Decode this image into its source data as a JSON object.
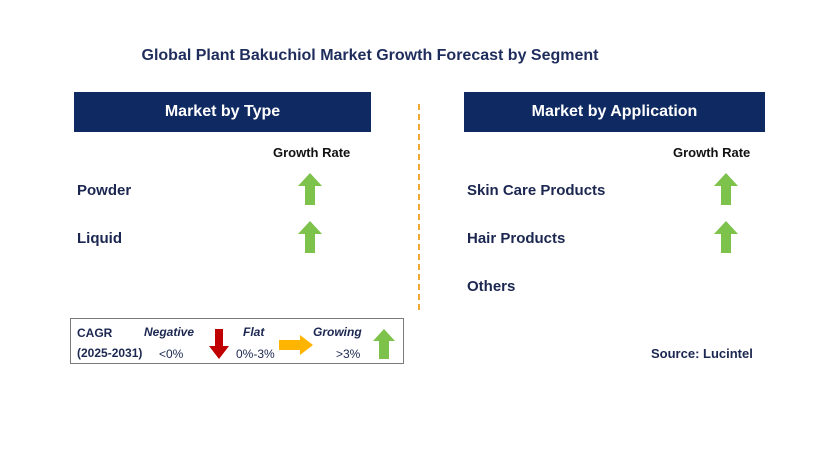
{
  "title": "Global Plant Bakuchiol Market Growth Forecast by Segment",
  "left_panel": {
    "header": "Market by Type",
    "growth_label": "Growth Rate",
    "rows": [
      {
        "label": "Powder",
        "trend": "growing"
      },
      {
        "label": "Liquid",
        "trend": "growing"
      }
    ]
  },
  "right_panel": {
    "header": "Market by Application",
    "growth_label": "Growth Rate",
    "rows": [
      {
        "label": "Skin Care Products",
        "trend": "growing"
      },
      {
        "label": "Hair Products",
        "trend": "growing"
      },
      {
        "label": "Others",
        "trend": ""
      }
    ]
  },
  "legend": {
    "cagr_label": "CAGR",
    "period": "(2025-2031)",
    "negative_label": "Negative",
    "negative_range": "<0%",
    "flat_label": "Flat",
    "flat_range": "0%-3%",
    "growing_label": "Growing",
    "growing_range": ">3%"
  },
  "source": "Source: Lucintel",
  "colors": {
    "header_bg": "#0f2a62",
    "growing": "#7dc24b",
    "negative": "#c00000",
    "flat": "#ffb400",
    "divider": "#f0a830"
  },
  "icons": {
    "growing": "up-arrow-icon",
    "negative": "down-arrow-icon",
    "flat": "right-arrow-icon"
  }
}
